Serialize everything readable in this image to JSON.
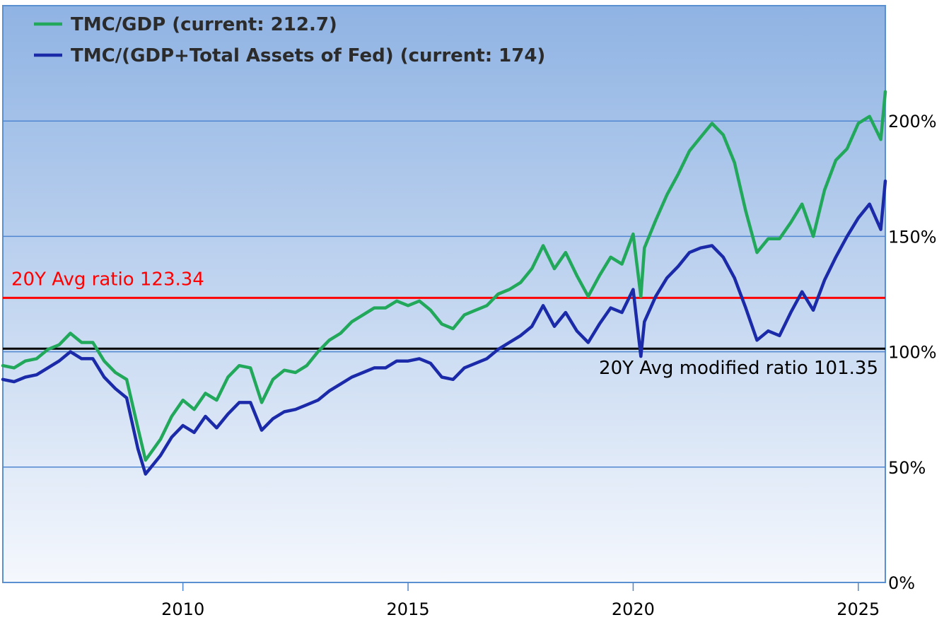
{
  "chart_data": {
    "type": "line",
    "title": "",
    "xlabel": "",
    "ylabel": "",
    "xlim": [
      2006.0,
      2025.6
    ],
    "ylim": [
      0,
      250
    ],
    "grid": true,
    "legend_position": "top-left",
    "x_ticks": [
      {
        "value": 2010,
        "label": "2010"
      },
      {
        "value": 2015,
        "label": "2015"
      },
      {
        "value": 2020,
        "label": "2020"
      },
      {
        "value": 2025,
        "label": "2025"
      }
    ],
    "y_ticks": [
      {
        "value": 0,
        "label": "0%"
      },
      {
        "value": 50,
        "label": "50%"
      },
      {
        "value": 100,
        "label": "100%"
      },
      {
        "value": 150,
        "label": "150%"
      },
      {
        "value": 200,
        "label": "200%"
      }
    ],
    "reference_lines": [
      {
        "value": 123.34,
        "label": "20Y Avg ratio 123.34",
        "color": "#ff0000"
      },
      {
        "value": 101.35,
        "label": "20Y Avg modified ratio 101.35",
        "color": "#000000"
      }
    ],
    "series": [
      {
        "name": "TMC/GDP (current: 212.7)",
        "color": "#22a85a",
        "x": [
          2006.0,
          2006.25,
          2006.5,
          2006.75,
          2007.0,
          2007.25,
          2007.5,
          2007.75,
          2008.0,
          2008.25,
          2008.5,
          2008.75,
          2009.0,
          2009.17,
          2009.5,
          2009.75,
          2010.0,
          2010.25,
          2010.5,
          2010.75,
          2011.0,
          2011.25,
          2011.5,
          2011.75,
          2012.0,
          2012.25,
          2012.5,
          2012.75,
          2013.0,
          2013.25,
          2013.5,
          2013.75,
          2014.0,
          2014.25,
          2014.5,
          2014.75,
          2015.0,
          2015.25,
          2015.5,
          2015.75,
          2016.0,
          2016.25,
          2016.5,
          2016.75,
          2017.0,
          2017.25,
          2017.5,
          2017.75,
          2018.0,
          2018.25,
          2018.5,
          2018.75,
          2019.0,
          2019.25,
          2019.5,
          2019.75,
          2020.0,
          2020.17,
          2020.25,
          2020.5,
          2020.75,
          2021.0,
          2021.25,
          2021.5,
          2021.75,
          2022.0,
          2022.25,
          2022.5,
          2022.75,
          2023.0,
          2023.25,
          2023.5,
          2023.75,
          2024.0,
          2024.25,
          2024.5,
          2024.75,
          2025.0,
          2025.25,
          2025.5,
          2025.6
        ],
        "y": [
          94,
          93,
          96,
          97,
          101,
          103,
          108,
          104,
          104,
          96,
          91,
          88,
          67,
          53,
          62,
          72,
          79,
          75,
          82,
          79,
          89,
          94,
          93,
          78,
          88,
          92,
          91,
          94,
          100,
          105,
          108,
          113,
          116,
          119,
          119,
          122,
          120,
          122,
          118,
          112,
          110,
          116,
          118,
          120,
          125,
          127,
          130,
          136,
          146,
          136,
          143,
          133,
          124,
          133,
          141,
          138,
          151,
          124,
          145,
          157,
          168,
          177,
          187,
          193,
          199,
          194,
          182,
          161,
          143,
          149,
          149,
          156,
          164,
          150,
          170,
          183,
          188,
          199,
          202,
          192,
          212.7
        ]
      },
      {
        "name": "TMC/(GDP+Total Assets of Fed) (current: 174)",
        "color": "#1a2aa8",
        "x": [
          2006.0,
          2006.25,
          2006.5,
          2006.75,
          2007.0,
          2007.25,
          2007.5,
          2007.75,
          2008.0,
          2008.25,
          2008.5,
          2008.75,
          2009.0,
          2009.17,
          2009.5,
          2009.75,
          2010.0,
          2010.25,
          2010.5,
          2010.75,
          2011.0,
          2011.25,
          2011.5,
          2011.75,
          2012.0,
          2012.25,
          2012.5,
          2012.75,
          2013.0,
          2013.25,
          2013.5,
          2013.75,
          2014.0,
          2014.25,
          2014.5,
          2014.75,
          2015.0,
          2015.25,
          2015.5,
          2015.75,
          2016.0,
          2016.25,
          2016.5,
          2016.75,
          2017.0,
          2017.25,
          2017.5,
          2017.75,
          2018.0,
          2018.25,
          2018.5,
          2018.75,
          2019.0,
          2019.25,
          2019.5,
          2019.75,
          2020.0,
          2020.17,
          2020.25,
          2020.5,
          2020.75,
          2021.0,
          2021.25,
          2021.5,
          2021.75,
          2022.0,
          2022.25,
          2022.5,
          2022.75,
          2023.0,
          2023.25,
          2023.5,
          2023.75,
          2024.0,
          2024.25,
          2024.5,
          2024.75,
          2025.0,
          2025.25,
          2025.5,
          2025.6
        ],
        "y": [
          88,
          87,
          89,
          90,
          93,
          96,
          100,
          97,
          97,
          89,
          84,
          80,
          58,
          47,
          55,
          63,
          68,
          65,
          72,
          67,
          73,
          78,
          78,
          66,
          71,
          74,
          75,
          77,
          79,
          83,
          86,
          89,
          91,
          93,
          93,
          96,
          96,
          97,
          95,
          89,
          88,
          93,
          95,
          97,
          101,
          104,
          107,
          111,
          120,
          111,
          117,
          109,
          104,
          112,
          119,
          117,
          127,
          98,
          113,
          124,
          132,
          137,
          143,
          145,
          146,
          141,
          132,
          119,
          105,
          109,
          107,
          117,
          126,
          118,
          131,
          141,
          150,
          158,
          164,
          153,
          174
        ]
      }
    ]
  }
}
